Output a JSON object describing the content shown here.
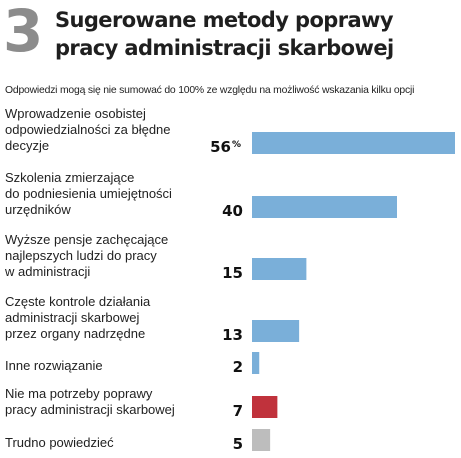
{
  "header": {
    "number": "3",
    "title_line1": "Sugerowane metody poprawy",
    "title_line2": "pracy administracji skarbowej",
    "subtitle": "Odpowiedzi mogą się nie sumować do 100% ze względu na możliwość wskazania kilku opcji"
  },
  "chart_data": {
    "type": "bar",
    "orientation": "horizontal",
    "categories": [
      "Wprowadzenie osobistej odpowiedzialności za błędne decyzje",
      "Szkolenia zmierzające do podniesienia umiejętności urzędników",
      "Wyższe pensje zachęcające najlepszych ludzi do pracy w administracji",
      "Częste kontrole działania administracji skarbowej przez organy nadrzędne",
      "Inne rozwiązanie",
      "Nie ma potrzeby poprawy pracy administracji skarbowej",
      "Trudno powiedzieć"
    ],
    "category_lines": [
      [
        "Wprowadzenie osobistej",
        "odpowiedzialności za błędne",
        "decyzje"
      ],
      [
        "Szkolenia zmierzające",
        "do podniesienia umiejętności",
        "urzędników"
      ],
      [
        "Wyższe pensje zachęcające",
        "najlepszych ludzi do pracy",
        "w administracji"
      ],
      [
        "Częste kontrole działania",
        "administracji skarbowej",
        "przez organy nadrzędne"
      ],
      [
        "Inne rozwiązanie"
      ],
      [
        "Nie ma potrzeby poprawy",
        "pracy administracji skarbowej"
      ],
      [
        "Trudno powiedzieć"
      ]
    ],
    "values": [
      56,
      40,
      15,
      13,
      2,
      7,
      5
    ],
    "value_labels": [
      "56",
      "40",
      "15",
      "13",
      "2",
      "7",
      "5"
    ],
    "unit": "%",
    "colors": [
      "#7aafd9",
      "#7aafd9",
      "#7aafd9",
      "#7aafd9",
      "#7aafd9",
      "#c0323c",
      "#bdbdbd"
    ],
    "xlim": [
      0,
      56
    ],
    "grid": false,
    "legend": "none"
  }
}
